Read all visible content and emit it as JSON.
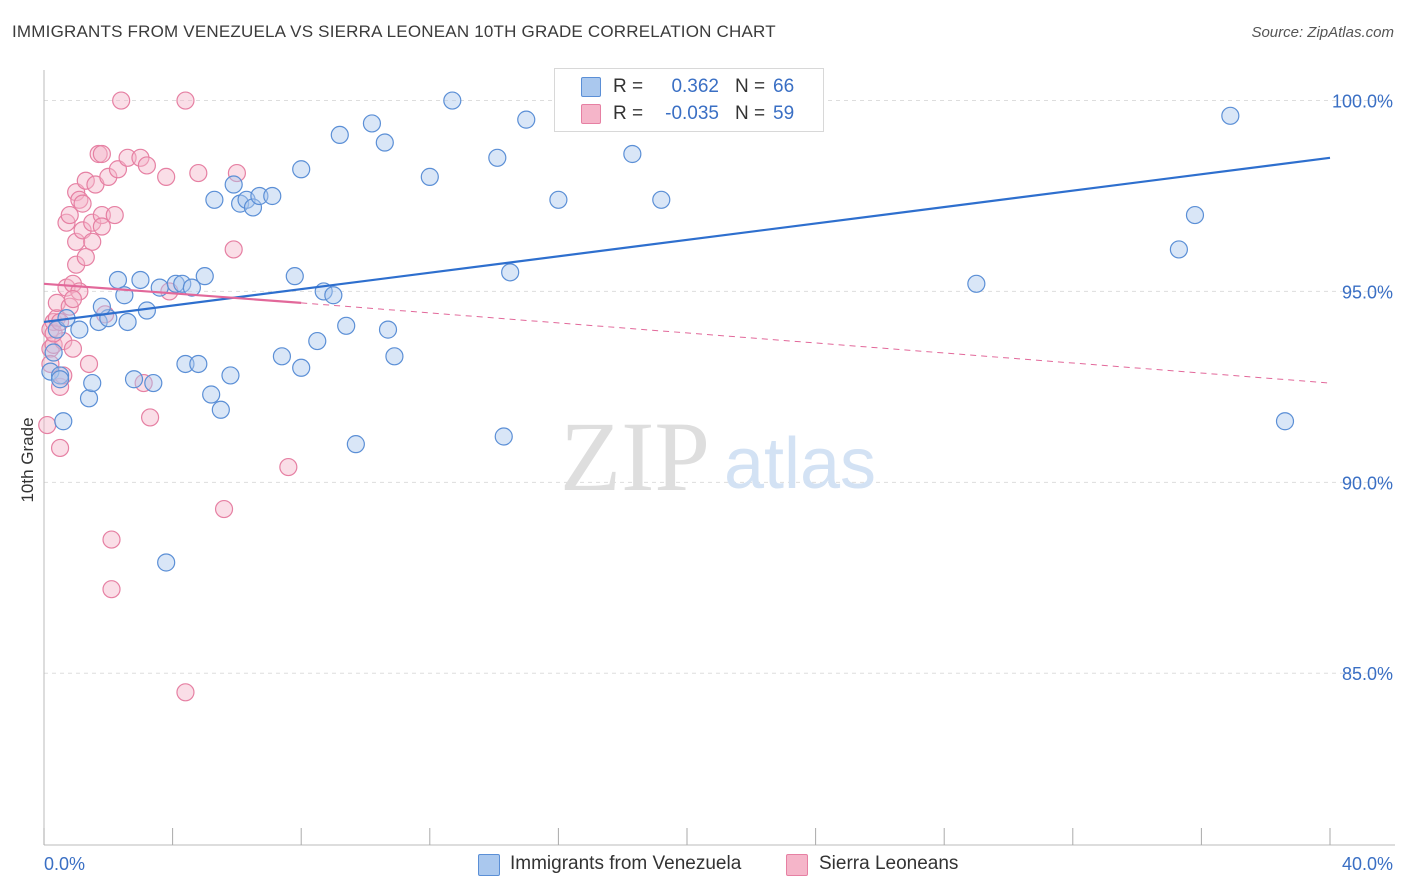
{
  "title": "IMMIGRANTS FROM VENEZUELA VS SIERRA LEONEAN 10TH GRADE CORRELATION CHART",
  "source": "Source: ZipAtlas.com",
  "watermark": {
    "zip": "ZIP",
    "atlas": "atlas"
  },
  "colors": {
    "blue_fill": "#aac8ee",
    "blue_stroke": "#5b8fd6",
    "blue_line": "#2e6fce",
    "pink_fill": "#f5b5c9",
    "pink_stroke": "#e680a3",
    "pink_line": "#e2689a",
    "axis_label": "#3a6fc4",
    "grid": "#dddddd"
  },
  "legend": {
    "r_label": "R =",
    "n_label": "N =",
    "series": [
      {
        "r": "0.362",
        "n": "66"
      },
      {
        "r": "-0.035",
        "n": "59"
      }
    ]
  },
  "chart_data": {
    "type": "scatter",
    "title": "IMMIGRANTS FROM VENEZUELA VS SIERRA LEONEAN 10TH GRADE CORRELATION CHART",
    "xlabel": "",
    "ylabel": "10th Grade",
    "xlim": [
      0,
      40
    ],
    "ylim": [
      80.5,
      100.8
    ],
    "x_tick_labels": [
      "0.0%",
      "40.0%"
    ],
    "y_ticks": [
      100,
      95,
      90,
      85
    ],
    "y_tick_labels": [
      "100.0%",
      "95.0%",
      "90.0%",
      "85.0%"
    ],
    "series": [
      {
        "name": "Immigrants from Venezuela",
        "r": 0.362,
        "n": 66,
        "trend": {
          "x": [
            0,
            40
          ],
          "y": [
            94.2,
            98.5
          ]
        },
        "points": [
          [
            0.2,
            92.9
          ],
          [
            0.5,
            92.8
          ],
          [
            0.6,
            91.6
          ],
          [
            0.5,
            92.7
          ],
          [
            0.4,
            94.0
          ],
          [
            0.7,
            94.3
          ],
          [
            1.1,
            94.0
          ],
          [
            1.4,
            92.2
          ],
          [
            1.5,
            92.6
          ],
          [
            1.7,
            94.2
          ],
          [
            2.0,
            94.3
          ],
          [
            1.8,
            94.6
          ],
          [
            2.3,
            95.3
          ],
          [
            2.5,
            94.9
          ],
          [
            2.6,
            94.2
          ],
          [
            2.8,
            92.7
          ],
          [
            3.0,
            95.3
          ],
          [
            3.2,
            94.5
          ],
          [
            3.4,
            92.6
          ],
          [
            3.6,
            95.1
          ],
          [
            3.8,
            87.9
          ],
          [
            4.1,
            95.2
          ],
          [
            4.3,
            95.2
          ],
          [
            4.4,
            93.1
          ],
          [
            4.6,
            95.1
          ],
          [
            4.8,
            93.1
          ],
          [
            5.0,
            95.4
          ],
          [
            5.2,
            92.3
          ],
          [
            5.3,
            97.4
          ],
          [
            5.5,
            91.9
          ],
          [
            5.8,
            92.8
          ],
          [
            5.9,
            97.8
          ],
          [
            6.1,
            97.3
          ],
          [
            6.3,
            97.4
          ],
          [
            6.5,
            97.2
          ],
          [
            6.7,
            97.5
          ],
          [
            7.1,
            97.5
          ],
          [
            7.4,
            93.3
          ],
          [
            7.8,
            95.4
          ],
          [
            8.0,
            98.2
          ],
          [
            8.0,
            93.0
          ],
          [
            8.5,
            93.7
          ],
          [
            8.7,
            95.0
          ],
          [
            9.0,
            94.9
          ],
          [
            9.2,
            99.1
          ],
          [
            9.4,
            94.1
          ],
          [
            9.7,
            91.0
          ],
          [
            10.2,
            99.4
          ],
          [
            10.6,
            98.9
          ],
          [
            10.7,
            94.0
          ],
          [
            10.9,
            93.3
          ],
          [
            12.0,
            98.0
          ],
          [
            12.7,
            100.0
          ],
          [
            14.1,
            98.5
          ],
          [
            14.3,
            91.2
          ],
          [
            14.5,
            95.5
          ],
          [
            15.0,
            99.5
          ],
          [
            16.0,
            97.4
          ],
          [
            18.3,
            98.6
          ],
          [
            19.2,
            97.4
          ],
          [
            29.0,
            95.2
          ],
          [
            35.3,
            96.1
          ],
          [
            35.8,
            97.0
          ],
          [
            36.9,
            99.6
          ],
          [
            38.6,
            91.6
          ],
          [
            0.3,
            93.4
          ]
        ]
      },
      {
        "name": "Sierra Leoneans",
        "r": -0.035,
        "n": 59,
        "trend": {
          "x": [
            0,
            8
          ],
          "y": [
            95.2,
            94.7
          ]
        },
        "trend_dashed": {
          "x": [
            8,
            40
          ],
          "y": [
            94.7,
            92.6
          ]
        },
        "points": [
          [
            0.1,
            91.5
          ],
          [
            0.2,
            93.5
          ],
          [
            0.2,
            94.0
          ],
          [
            0.3,
            93.6
          ],
          [
            0.3,
            94.2
          ],
          [
            0.4,
            94.3
          ],
          [
            0.4,
            94.7
          ],
          [
            0.5,
            92.5
          ],
          [
            0.5,
            90.9
          ],
          [
            0.6,
            93.7
          ],
          [
            0.6,
            92.8
          ],
          [
            0.7,
            95.1
          ],
          [
            0.7,
            96.8
          ],
          [
            0.8,
            97.0
          ],
          [
            0.8,
            94.6
          ],
          [
            0.9,
            93.5
          ],
          [
            0.9,
            95.2
          ],
          [
            1.0,
            97.6
          ],
          [
            1.0,
            96.3
          ],
          [
            1.0,
            95.7
          ],
          [
            1.1,
            97.4
          ],
          [
            1.1,
            95.0
          ],
          [
            1.2,
            97.3
          ],
          [
            1.2,
            96.6
          ],
          [
            1.3,
            97.9
          ],
          [
            1.4,
            93.1
          ],
          [
            1.5,
            96.8
          ],
          [
            1.5,
            96.3
          ],
          [
            1.6,
            97.8
          ],
          [
            1.7,
            98.6
          ],
          [
            1.8,
            97.0
          ],
          [
            1.8,
            98.6
          ],
          [
            1.8,
            96.7
          ],
          [
            1.9,
            94.4
          ],
          [
            2.0,
            98.0
          ],
          [
            2.2,
            97.0
          ],
          [
            2.1,
            88.5
          ],
          [
            2.1,
            87.2
          ],
          [
            2.3,
            98.2
          ],
          [
            2.4,
            100.0
          ],
          [
            2.6,
            98.5
          ],
          [
            3.0,
            98.5
          ],
          [
            3.1,
            92.6
          ],
          [
            3.2,
            98.3
          ],
          [
            3.3,
            91.7
          ],
          [
            3.8,
            98.0
          ],
          [
            3.9,
            95.0
          ],
          [
            4.4,
            100.0
          ],
          [
            4.8,
            98.1
          ],
          [
            5.6,
            89.3
          ],
          [
            5.9,
            96.1
          ],
          [
            6.0,
            98.1
          ],
          [
            7.6,
            90.4
          ],
          [
            4.4,
            84.5
          ],
          [
            0.3,
            93.9
          ],
          [
            0.5,
            94.2
          ],
          [
            0.9,
            94.8
          ],
          [
            1.3,
            95.9
          ],
          [
            0.2,
            93.1
          ]
        ]
      }
    ]
  }
}
